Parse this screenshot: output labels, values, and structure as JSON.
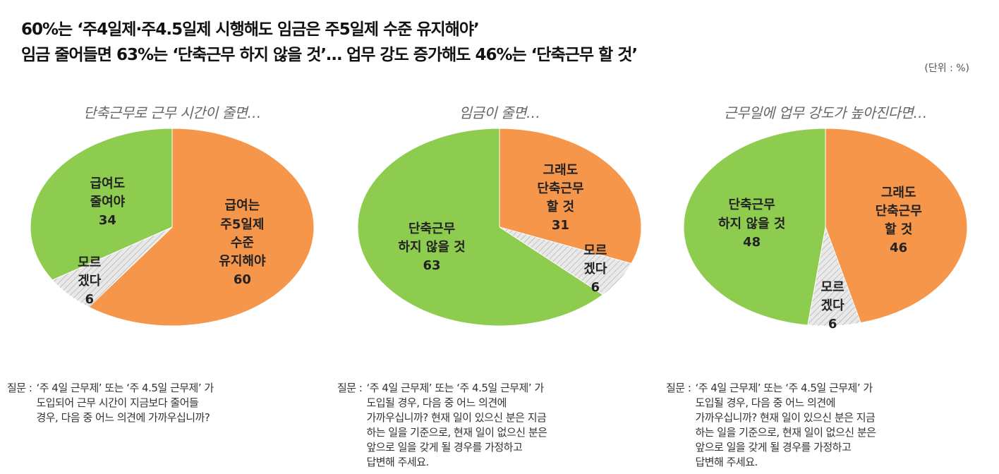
{
  "title_lines": [
    "60%는 ‘주4일제·주4.5일제 시행해도 임금은 주5일제 수준 유지해야’",
    "임금 줄어들면 63%는 ‘단축근무 하지 않을 것’… 업무 강도 증가해도 46%는 ‘단축근무 할 것’"
  ],
  "unit": "(단위 : %)",
  "chart_data": [
    {
      "type": "pie",
      "title": "단축근무로 근무 시간이 줄면…",
      "categories": [
        "급여는\n주5일제\n수준\n유지해야",
        "모르\n겠다",
        "급여도\n줄여야"
      ],
      "values": [
        60,
        6,
        34
      ],
      "colors": [
        "#f5964a",
        "#e9e9e9",
        "#8dcc4e"
      ],
      "hatched": [
        false,
        true,
        false
      ],
      "question_label": "질문 :",
      "question": "‘주 4일 근무제’ 또는 ‘주 4.5일 근무제’ 가\n도입되어 근무 시간이 지금보다 줄어들\n경우, 다음 중 어느 의견에 가까우십니까?"
    },
    {
      "type": "pie",
      "title": "임금이 줄면…",
      "categories": [
        "그래도\n단축근무\n할 것",
        "모르\n겠다",
        "단축근무\n하지 않을 것"
      ],
      "values": [
        31,
        6,
        63
      ],
      "colors": [
        "#f5964a",
        "#e9e9e9",
        "#8dcc4e"
      ],
      "hatched": [
        false,
        true,
        false
      ],
      "question_label": "질문 :",
      "question": "‘주 4일 근무제’ 또는 ‘주 4.5일 근무제’ 가\n도입될 경우, 다음 중 어느 의견에\n가까우십니까? 현재 일이 있으신 분은 지금\n하는 일을 기준으로, 현재 일이 없으신 분은\n앞으로 일을 갖게 될 경우를 가정하고\n답변해 주세요."
    },
    {
      "type": "pie",
      "title": "근무일에 업무 강도가 높아진다면…",
      "categories": [
        "그래도\n단축근무\n할 것",
        "모르\n겠다",
        "단축근무\n하지 않을 것"
      ],
      "values": [
        46,
        6,
        48
      ],
      "colors": [
        "#f5964a",
        "#e9e9e9",
        "#8dcc4e"
      ],
      "hatched": [
        false,
        true,
        false
      ],
      "question_label": "질문 :",
      "question": "‘주 4일 근무제’ 또는 ‘주 4.5일 근무제’ 가\n도입될 경우, 다음 중 어느 의견에\n가까우십니까? 현재 일이 있으신 분은 지금\n하는 일을 기준으로, 현재 일이 없으신 분은\n앞으로 일을 갖게 될 경우를 가정하고\n답변해 주세요."
    }
  ]
}
